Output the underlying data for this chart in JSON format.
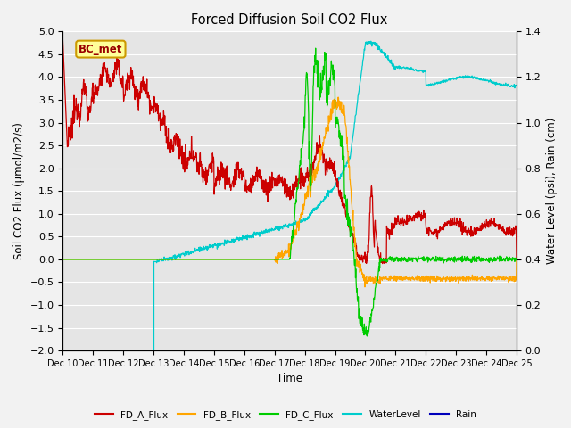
{
  "title": "Forced Diffusion Soil CO2 Flux",
  "ylabel_left": "Soil CO2 Flux (μmol/m2/s)",
  "ylabel_right": "Water Level (psi), Rain (cm)",
  "xlabel": "Time",
  "ylim_left": [
    -2.0,
    5.0
  ],
  "ylim_right": [
    0.0,
    1.4
  ],
  "xtick_labels": [
    "Dec 10",
    "Dec 11",
    "Dec 12",
    "Dec 13",
    "Dec 14",
    "Dec 15",
    "Dec 16",
    "Dec 17",
    "Dec 18",
    "Dec 19",
    "Dec 20",
    "Dec 21",
    "Dec 22",
    "Dec 23",
    "Dec 24",
    "Dec 25"
  ],
  "background_color": "#e5e5e5",
  "grid_color": "#ffffff",
  "fig_bg": "#f2f2f2",
  "annotation_text": "BC_met",
  "annotation_bg": "#ffff99",
  "annotation_border": "#cc9900",
  "colors": {
    "FD_A_Flux": "#cc0000",
    "FD_B_Flux": "#ffa500",
    "FD_C_Flux": "#00cc00",
    "WaterLevel": "#00cccc",
    "Rain": "#0000bb"
  }
}
